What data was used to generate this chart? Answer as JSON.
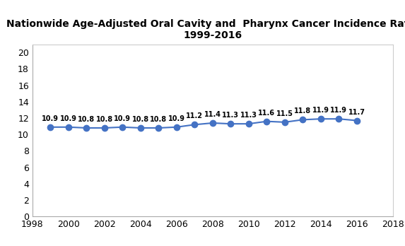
{
  "title_line1": "Nationwide Age-Adjusted Oral Cavity and  Pharynx Cancer Incidence Rate,",
  "title_line2": "1999-2016",
  "years": [
    1999,
    2000,
    2001,
    2002,
    2003,
    2004,
    2005,
    2006,
    2007,
    2008,
    2009,
    2010,
    2011,
    2012,
    2013,
    2014,
    2015,
    2016
  ],
  "values": [
    10.9,
    10.9,
    10.8,
    10.8,
    10.9,
    10.8,
    10.8,
    10.9,
    11.2,
    11.4,
    11.3,
    11.3,
    11.6,
    11.5,
    11.8,
    11.9,
    11.9,
    11.7
  ],
  "xlim": [
    1998,
    2018
  ],
  "ylim": [
    0,
    21
  ],
  "yticks": [
    0,
    2,
    4,
    6,
    8,
    10,
    12,
    14,
    16,
    18,
    20
  ],
  "xticks": [
    1998,
    2000,
    2002,
    2004,
    2006,
    2008,
    2010,
    2012,
    2014,
    2016,
    2018
  ],
  "line_color": "#4472C4",
  "marker_color": "#4472C4",
  "background_color": "#ffffff",
  "label_fontsize": 7.0,
  "title_fontsize": 10.0,
  "tick_fontsize": 9.0,
  "annotation_color": "#000000",
  "spine_color": "#c0c0c0"
}
